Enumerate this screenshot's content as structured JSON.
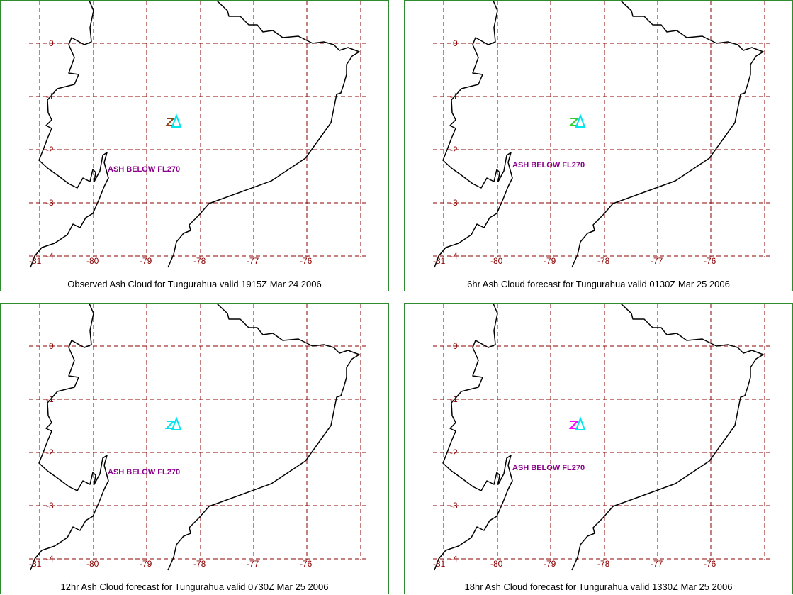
{
  "panels": [
    {
      "id": "p1",
      "caption": "Observed Ash Cloud for Tungurahua valid 1915Z Mar 24 2006",
      "ash_label": "ASH BELOW FL270",
      "colors": [
        "#8b4513",
        "#00e5ee"
      ]
    },
    {
      "id": "p2",
      "caption": "6hr Ash Cloud forecast for Tungurahua valid 0130Z Mar 25 2006",
      "ash_label": "ASH BELOW FL270",
      "colors": [
        "#32cd32",
        "#00e5ee"
      ]
    },
    {
      "id": "p3",
      "caption": "12hr Ash Cloud forecast for Tungurahua valid 0730Z Mar 25 2006",
      "ash_label": "ASH BELOW FL270",
      "colors": [
        "#00e5ee",
        "#00e5ee"
      ]
    },
    {
      "id": "p4",
      "caption": "18hr Ash Cloud forecast for Tungurahua valid 1330Z Mar 25 2006",
      "ash_label": "ASH BELOW FL270",
      "colors": [
        "#ff00ff",
        "#00e5ee"
      ]
    }
  ],
  "lat_ticks": [
    "0",
    "-1",
    "-2",
    "-3",
    "-4"
  ],
  "lon_ticks": [
    "-81",
    "-80",
    "-79",
    "-78",
    "-77",
    "-76"
  ],
  "map_extent": {
    "lon_min": -81,
    "lon_max": -75.4,
    "lat_min": -4,
    "lat_max": 0.6
  },
  "colors": {
    "grid": "#8b0000",
    "coast": "#000000",
    "ash_label": "#8b008b",
    "border": "#2e8b2e"
  },
  "volcano": {
    "name": "Tungurahua",
    "lon": -78.44,
    "lat": -1.47
  }
}
